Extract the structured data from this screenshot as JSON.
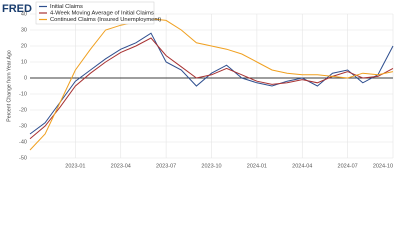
{
  "logo": "FRED",
  "chart_data": {
    "type": "line",
    "y_label": "Percent Change from Year Ago",
    "x": [
      "2022-10",
      "2022-11",
      "2022-12",
      "2023-01",
      "2023-02",
      "2023-03",
      "2023-04",
      "2023-05",
      "2023-06",
      "2023-07",
      "2023-08",
      "2023-09",
      "2023-10",
      "2023-11",
      "2023-12",
      "2024-01",
      "2024-02",
      "2024-03",
      "2024-04",
      "2024-05",
      "2024-06",
      "2024-07",
      "2024-08",
      "2024-09",
      "2024-10"
    ],
    "xlim": [
      "2022-10",
      "2024-10"
    ],
    "xticks": [
      "2023-01",
      "2023-04",
      "2023-07",
      "2023-10",
      "2024-01",
      "2024-04",
      "2024-07",
      "2024-10"
    ],
    "ylim": [
      -50,
      40
    ],
    "yticks": [
      -50,
      -40,
      -30,
      -20,
      -10,
      0,
      10,
      20,
      30,
      40
    ],
    "grid": true,
    "series": [
      {
        "name": "Initial Claims",
        "color": "#2f4f8f",
        "values": [
          -35,
          -28,
          -15,
          -2,
          5,
          12,
          18,
          22,
          28,
          10,
          5,
          -5,
          3,
          8,
          0,
          -3,
          -5,
          -2,
          0,
          -5,
          3,
          5,
          -3,
          2,
          20
        ]
      },
      {
        "name": "4-Week Moving Average of Initial Claims",
        "color": "#a83232",
        "values": [
          -38,
          -30,
          -18,
          -5,
          3,
          10,
          16,
          20,
          25,
          14,
          7,
          0,
          2,
          6,
          2,
          -2,
          -4,
          -3,
          -1,
          -3,
          1,
          4,
          0,
          1,
          6
        ]
      },
      {
        "name": "Continued Claims (Insured Unemployment)",
        "color": "#f0a020",
        "values": [
          -45,
          -35,
          -15,
          5,
          18,
          30,
          33,
          35,
          37,
          36,
          30,
          22,
          20,
          18,
          15,
          10,
          5,
          3,
          2,
          2,
          1,
          0,
          3,
          2,
          4
        ]
      }
    ]
  }
}
